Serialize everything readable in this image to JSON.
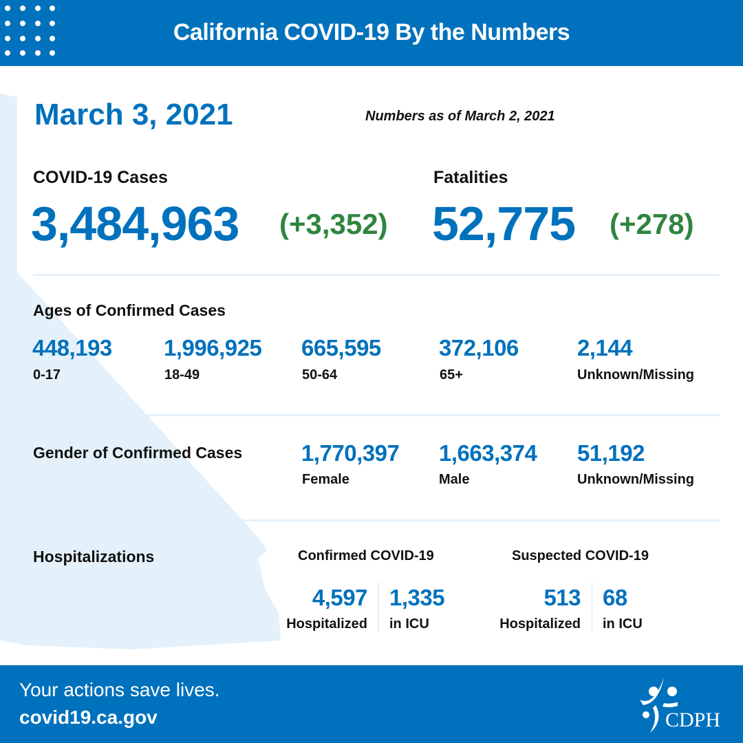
{
  "header": {
    "title": "California COVID-19 By the Numbers",
    "icon": "dot-grid-icon"
  },
  "date": "March 3, 2021",
  "as_of": "Numbers as of March 2, 2021",
  "cases": {
    "label": "COVID-19 Cases",
    "total": "3,484,963",
    "change": "(+3,352)"
  },
  "fatalities": {
    "label": "Fatalities",
    "total": "52,775",
    "change": "(+278)"
  },
  "ages": {
    "title": "Ages of Confirmed Cases",
    "items": [
      {
        "value": "448,193",
        "label": "0-17"
      },
      {
        "value": "1,996,925",
        "label": "18-49"
      },
      {
        "value": "665,595",
        "label": "50-64"
      },
      {
        "value": "372,106",
        "label": "65+"
      },
      {
        "value": "2,144",
        "label": "Unknown/Missing"
      }
    ]
  },
  "gender": {
    "title": "Gender of Confirmed Cases",
    "items": [
      {
        "value": "1,770,397",
        "label": "Female"
      },
      {
        "value": "1,663,374",
        "label": "Male"
      },
      {
        "value": "51,192",
        "label": "Unknown/Missing"
      }
    ]
  },
  "hospitalizations": {
    "title": "Hospitalizations",
    "confirmed": {
      "title": "Confirmed COVID-19",
      "hospitalized": "4,597",
      "hospitalized_label": "Hospitalized",
      "icu": "1,335",
      "icu_label": "in ICU"
    },
    "suspected": {
      "title": "Suspected COVID-19",
      "hospitalized": "513",
      "hospitalized_label": "Hospitalized",
      "icu": "68",
      "icu_label": "in ICU"
    }
  },
  "footer": {
    "tagline": "Your actions save lives.",
    "url": "covid19.ca.gov",
    "logo_text": "CDPH"
  },
  "colors": {
    "brand_blue": "#0071bc",
    "change_green": "#2e8540",
    "map_blue": "#e4f1fb"
  }
}
